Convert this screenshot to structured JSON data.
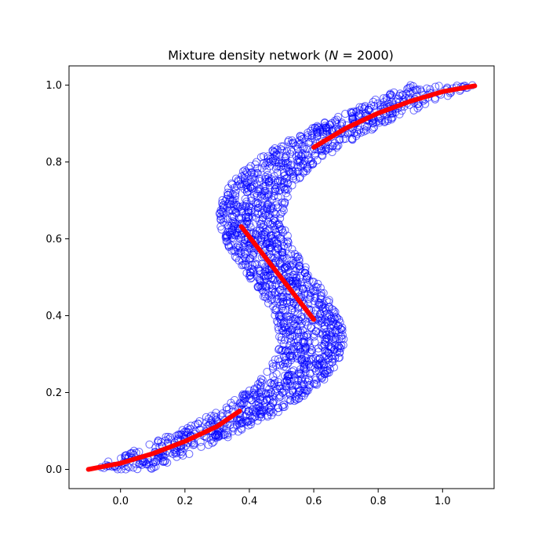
{
  "chart_data": {
    "type": "scatter",
    "title": "Mixture density network (N = 2000)",
    "title_parts": {
      "prefix": "Mixture density network (",
      "var": "N",
      "suffix": " = 2000)"
    },
    "xlabel": "",
    "ylabel": "",
    "xlim": [
      -0.16,
      1.16
    ],
    "ylim": [
      -0.05,
      1.05
    ],
    "xticks": [
      0.0,
      0.2,
      0.4,
      0.6,
      0.8,
      1.0
    ],
    "yticks": [
      0.0,
      0.2,
      0.4,
      0.6,
      0.8,
      1.0
    ],
    "xtick_labels": [
      "0.0",
      "0.2",
      "0.4",
      "0.6",
      "0.8",
      "1.0"
    ],
    "ytick_labels": [
      "0.0",
      "0.2",
      "0.4",
      "0.6",
      "0.8",
      "1.0"
    ],
    "grid": false,
    "n_points": 2000,
    "scatter_generation": {
      "relation": "x = t + 0.3*sin(2*pi*t) + noise",
      "t_range": [
        0,
        1
      ],
      "noise_uniform": [
        -0.1,
        0.1
      ]
    },
    "scatter_style": {
      "marker": "hollow-circle",
      "edge_color": "#0000ff",
      "alpha": 0.6
    },
    "series": [
      {
        "kind": "fit-line",
        "color": "#ff0000",
        "x": [
          -0.1,
          0.0,
          0.1,
          0.2,
          0.3,
          0.37
        ],
        "y": [
          0.0,
          0.016,
          0.041,
          0.073,
          0.112,
          0.152
        ]
      },
      {
        "kind": "fit-line",
        "color": "#ff0000",
        "x": [
          0.375,
          0.6
        ],
        "y": [
          0.632,
          0.39
        ]
      },
      {
        "kind": "fit-line",
        "color": "#ff0000",
        "x": [
          0.6,
          0.7,
          0.8,
          0.9,
          1.0,
          1.1
        ],
        "y": [
          0.838,
          0.888,
          0.927,
          0.958,
          0.983,
          0.998
        ]
      }
    ]
  }
}
